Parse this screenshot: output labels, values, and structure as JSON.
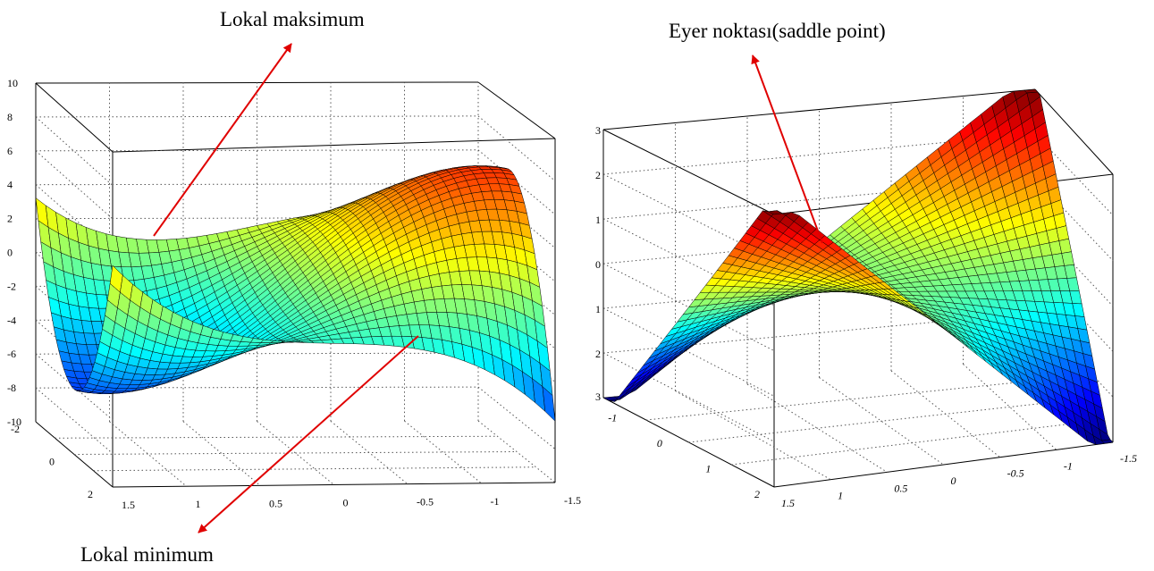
{
  "annotations": {
    "left_top": "Lokal maksimum",
    "left_bottom": "Lokal minimum",
    "right_top": "Eyer noktası(saddle point)"
  },
  "colors": {
    "arrow": "#e00000"
  },
  "chart_data": [
    {
      "type": "surface",
      "zticks": [
        "10",
        "8",
        "6",
        "4",
        "2",
        "0",
        "-2",
        "-4",
        "-6",
        "-8",
        "-10"
      ],
      "xticks": [
        "1.5",
        "1",
        "0.5",
        "0",
        "-0.5",
        "-1",
        "-1.5"
      ],
      "yticks": [
        "-2",
        "0",
        "2"
      ],
      "xlim": [
        -1.5,
        1.5
      ],
      "ylim": [
        -2,
        2
      ],
      "zlim": [
        -10,
        10
      ],
      "grid": true
    },
    {
      "type": "surface",
      "xticks": [
        "1.5",
        "1",
        "0.5",
        "0",
        "-0.5",
        "-1",
        "-1.5"
      ],
      "yticks": [
        "-1",
        "0",
        "1",
        "2"
      ],
      "xlim": [
        -1.5,
        1.5
      ],
      "ylim": [
        -1.5,
        2
      ],
      "grid": true
    }
  ]
}
